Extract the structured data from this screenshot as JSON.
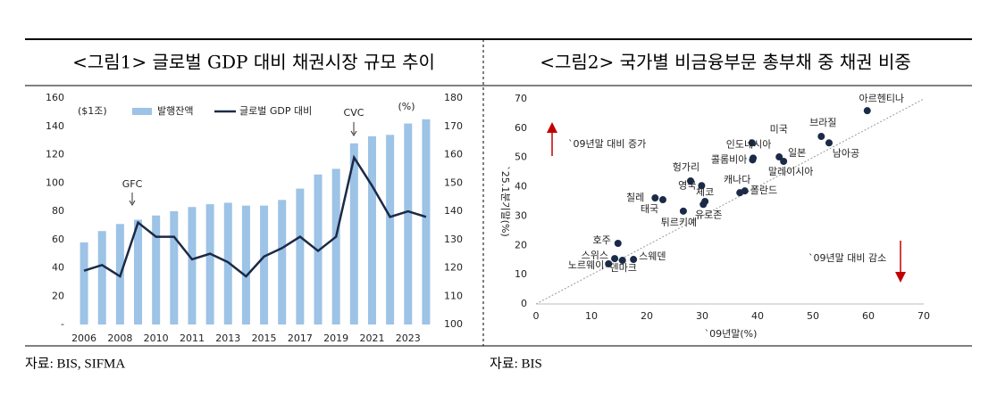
{
  "chart_data": [
    {
      "type": "bar",
      "title": "<그림1> 글로벌 GDP 대비 채권시장 규모 추이",
      "source": "자료: BIS, SIFMA",
      "categories": [
        "2006",
        null,
        "2008",
        null,
        "2010",
        null,
        "2011",
        null,
        "2013",
        null,
        "2015",
        null,
        "2017",
        null,
        "2019",
        null,
        "2021",
        null,
        "2023",
        null
      ],
      "series": [
        {
          "name": "발행잔액",
          "type": "bar",
          "color": "#9dc3e6",
          "values": [
            58,
            66,
            71,
            74,
            77,
            80,
            83,
            85,
            86,
            84,
            84,
            88,
            96,
            106,
            110,
            128,
            133,
            134,
            142,
            145
          ]
        },
        {
          "name": "글로벌 GDP 대비",
          "type": "line",
          "axis": "y2",
          "color": "#1b2a47",
          "values": [
            119,
            121,
            117,
            136,
            131,
            131,
            123,
            125,
            122,
            117,
            124,
            127,
            131,
            126,
            131,
            159,
            149,
            138,
            140,
            138
          ]
        }
      ],
      "ylim": [
        0,
        160
      ],
      "yticks": [
        {
          "value": 0,
          "label": "-"
        },
        20,
        40,
        60,
        80,
        100,
        120,
        140,
        160
      ],
      "y2lim": [
        100,
        180
      ],
      "y2ticks": [
        100,
        110,
        120,
        130,
        140,
        150,
        160,
        170,
        180
      ],
      "annotations": [
        "($1조)",
        "(%)",
        "GFC",
        "CVC"
      ],
      "grid": false
    },
    {
      "type": "scatter",
      "title": "<그림2> 국가별 비금융부문 총부채 중 채권 비중",
      "source": "자료: BIS",
      "x_label": "`09년말(%)",
      "y_label": "`25.1분기말(%)",
      "labels": [
        "아르헨티나",
        "브라질",
        "남아공",
        "미국",
        "인도네시아",
        "콜롬비아",
        "일본",
        "말레이시아",
        "헝가리",
        "영국",
        "칠레",
        "태국",
        "체코",
        "유로존",
        "튀르키예",
        "캐나다",
        "폴란드",
        "호주",
        "스위스",
        "노르웨이",
        "덴마크",
        "스웨덴"
      ],
      "x": [
        59.8,
        51.5,
        52.9,
        39,
        39.2,
        39.1,
        43.9,
        44.7,
        27.9,
        29.9,
        21.5,
        22.9,
        30.5,
        30.2,
        26.6,
        36.8,
        37.7,
        14.8,
        14.2,
        13.1,
        15.6,
        17.6
      ],
      "values": [
        66,
        57.2,
        55,
        55,
        49.8,
        49.2,
        50.2,
        48.7,
        42,
        40.4,
        36.2,
        35.6,
        35,
        34,
        31.7,
        38,
        38.6,
        20.7,
        15.5,
        13.7,
        14.9,
        15.2
      ],
      "color": "#1b2a47",
      "xlim": [
        0,
        70
      ],
      "xticks": [
        0,
        10,
        20,
        30,
        40,
        50,
        60,
        70
      ],
      "ylim": [
        0,
        70
      ],
      "yticks": [
        0,
        10,
        20,
        30,
        40,
        50,
        60,
        70
      ],
      "annotations": [
        "`09년말 대비 증가",
        "`09년말 대비 감소"
      ],
      "grid": false
    }
  ]
}
